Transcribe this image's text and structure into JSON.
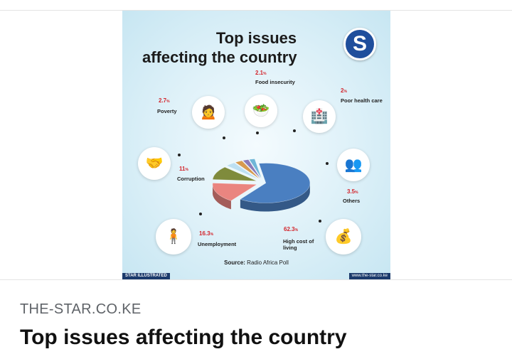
{
  "card": {
    "site": "THE-STAR.CO.KE",
    "headline": "Top issues affecting the country"
  },
  "infographic": {
    "title_line1": "Top issues",
    "title_line2": "affecting the country",
    "logo_letter": "S",
    "source_label": "Source:",
    "source_text": " Radio Africa Poll",
    "credit_left": "STAR ILLUSTRATED",
    "credit_right": "www.the-star.co.ke",
    "pct_sign": "%"
  },
  "chart_data": {
    "type": "pie",
    "title": "Top issues affecting the country",
    "source": "Radio Africa Poll",
    "unit": "%",
    "slices": [
      {
        "label": "High cost of living",
        "value": 62.3,
        "color": "#4a7fc1"
      },
      {
        "label": "Unemployment",
        "value": 16.3,
        "color": "#ea8580"
      },
      {
        "label": "Corruption",
        "value": 11.0,
        "color": "#7f8b3c"
      },
      {
        "label": "Others",
        "value": 3.5,
        "color": "#bde0f2"
      },
      {
        "label": "Poverty",
        "value": 2.7,
        "color": "#d79a4e"
      },
      {
        "label": "Food insecurity",
        "value": 2.1,
        "color": "#8a7ab8"
      },
      {
        "label": "Poor health care",
        "value": 2.0,
        "color": "#6fb6d8"
      }
    ]
  }
}
